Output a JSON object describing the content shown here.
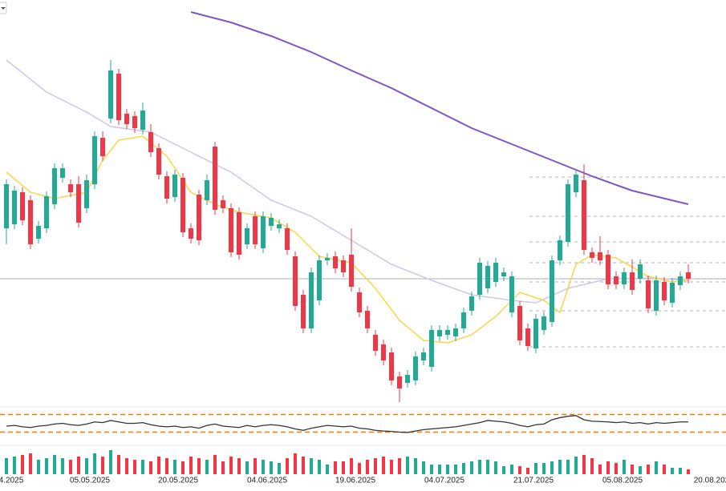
{
  "chart_data": {
    "type": "candlestick",
    "ylim": [
      0,
      510
    ],
    "colors": {
      "up": "#22ab94",
      "down": "#f23645",
      "volume_up": "#22ab94",
      "volume_down": "#f23645",
      "oscillator": "#333333",
      "bands": "#f57c00",
      "price_line": "#b0b0b0",
      "levels": "#9e9e9e"
    },
    "candles": [
      [
        225,
        286,
        205,
        280
      ],
      [
        230,
        278,
        224,
        272
      ],
      [
        270,
        276,
        229,
        235
      ],
      [
        260,
        266,
        199,
        205
      ],
      [
        212,
        234,
        206,
        228
      ],
      [
        225,
        271,
        219,
        265
      ],
      [
        255,
        306,
        249,
        300
      ],
      [
        288,
        306,
        282,
        300
      ],
      [
        280,
        286,
        264,
        270
      ],
      [
        280,
        290,
        226,
        232
      ],
      [
        250,
        292,
        244,
        285
      ],
      [
        280,
        346,
        274,
        340
      ],
      [
        338,
        346,
        309,
        315
      ],
      [
        362,
        435,
        356,
        422
      ],
      [
        418,
        424,
        354,
        360
      ],
      [
        368,
        374,
        349,
        355
      ],
      [
        365,
        371,
        344,
        350
      ],
      [
        348,
        382,
        342,
        372
      ],
      [
        345,
        355,
        314,
        320
      ],
      [
        325,
        331,
        286,
        292
      ],
      [
        290,
        296,
        256,
        262
      ],
      [
        264,
        298,
        258,
        292
      ],
      [
        288,
        294,
        214,
        220
      ],
      [
        225,
        231,
        206,
        212
      ],
      [
        267,
        273,
        204,
        210
      ],
      [
        260,
        292,
        254,
        285
      ],
      [
        327,
        333,
        242,
        248
      ],
      [
        260,
        266,
        244,
        250
      ],
      [
        250,
        256,
        189,
        195
      ],
      [
        245,
        251,
        186,
        192
      ],
      [
        205,
        231,
        199,
        225
      ],
      [
        240,
        246,
        199,
        205
      ],
      [
        200,
        246,
        194,
        240
      ],
      [
        228,
        244,
        222,
        238
      ],
      [
        225,
        236,
        219,
        230
      ],
      [
        225,
        231,
        192,
        198
      ],
      [
        190,
        196,
        122,
        128
      ],
      [
        142,
        148,
        94,
        100
      ],
      [
        100,
        176,
        94,
        170
      ],
      [
        135,
        191,
        129,
        185
      ],
      [
        185,
        194,
        179,
        188
      ],
      [
        190,
        196,
        169,
        175
      ],
      [
        185,
        191,
        164,
        170
      ],
      [
        192,
        225,
        146,
        152
      ],
      [
        145,
        151,
        114,
        120
      ],
      [
        122,
        128,
        94,
        100
      ],
      [
        92,
        98,
        66,
        72
      ],
      [
        80,
        86,
        54,
        60
      ],
      [
        70,
        76,
        29,
        35
      ],
      [
        40,
        46,
        8,
        25
      ],
      [
        32,
        48,
        26,
        42
      ],
      [
        35,
        71,
        29,
        65
      ],
      [
        60,
        76,
        54,
        70
      ],
      [
        52,
        104,
        46,
        98
      ],
      [
        90,
        104,
        84,
        98
      ],
      [
        92,
        104,
        86,
        98
      ],
      [
        90,
        106,
        84,
        100
      ],
      [
        100,
        126,
        94,
        120
      ],
      [
        122,
        146,
        116,
        140
      ],
      [
        142,
        188,
        136,
        182
      ],
      [
        150,
        184,
        144,
        178
      ],
      [
        158,
        188,
        152,
        182
      ],
      [
        165,
        176,
        159,
        170
      ],
      [
        120,
        171,
        114,
        165
      ],
      [
        128,
        134,
        79,
        85
      ],
      [
        100,
        106,
        72,
        78
      ],
      [
        75,
        118,
        69,
        112
      ],
      [
        98,
        121,
        92,
        115
      ],
      [
        108,
        191,
        102,
        185
      ],
      [
        185,
        216,
        179,
        210
      ],
      [
        208,
        286,
        202,
        280
      ],
      [
        270,
        298,
        264,
        292
      ],
      [
        285,
        305,
        192,
        198
      ],
      [
        195,
        201,
        182,
        188
      ],
      [
        195,
        215,
        179,
        185
      ],
      [
        192,
        198,
        149,
        155
      ],
      [
        165,
        171,
        149,
        155
      ],
      [
        155,
        176,
        149,
        170
      ],
      [
        170,
        186,
        142,
        148
      ],
      [
        162,
        186,
        156,
        180
      ],
      [
        160,
        166,
        119,
        125
      ],
      [
        122,
        166,
        116,
        160
      ],
      [
        158,
        164,
        129,
        135
      ],
      [
        132,
        163,
        126,
        157
      ],
      [
        154,
        171,
        148,
        165
      ],
      [
        170,
        180,
        156,
        162
      ]
    ],
    "moving_averages": [
      {
        "color": "#7e57c2",
        "x": [
          23,
          28,
          33,
          38,
          43,
          48,
          53,
          58,
          63,
          68,
          73,
          78,
          85
        ],
        "values": [
          495,
          482,
          465,
          445,
          422,
          400,
          375,
          350,
          330,
          310,
          290,
          272,
          255
        ]
      },
      {
        "color": "#d1c4e9",
        "x": [
          0,
          5,
          10,
          13,
          18,
          23,
          28,
          33,
          38,
          43,
          48,
          53,
          58,
          63,
          66,
          70,
          75,
          80,
          85
        ],
        "values": [
          435,
          395,
          370,
          352,
          345,
          320,
          295,
          260,
          240,
          210,
          180,
          160,
          142,
          135,
          132,
          150,
          162,
          163,
          160
        ]
      },
      {
        "color": "#f9d54a",
        "x": [
          0,
          3,
          6,
          10,
          12,
          14,
          17,
          20,
          23,
          26,
          29,
          33,
          36,
          39,
          43,
          46,
          49,
          52,
          55,
          58,
          61,
          64,
          67,
          69,
          71,
          73,
          76,
          80,
          83,
          85
        ],
        "values": [
          295,
          270,
          262,
          270,
          310,
          335,
          340,
          315,
          270,
          255,
          245,
          238,
          220,
          190,
          182,
          150,
          110,
          85,
          82,
          92,
          115,
          145,
          135,
          120,
          180,
          192,
          188,
          165,
          158,
          160
        ]
      }
    ],
    "price_line": 162,
    "levels": [
      289,
      240,
      208,
      182,
      158,
      122,
      77
    ],
    "volume_ylim": [
      0,
      35
    ],
    "volume": [
      20,
      22,
      24,
      26,
      18,
      20,
      24,
      20,
      18,
      22,
      20,
      26,
      22,
      30,
      24,
      20,
      18,
      18,
      16,
      22,
      20,
      18,
      16,
      22,
      20,
      18,
      24,
      16,
      22,
      20,
      16,
      20,
      18,
      16,
      14,
      20,
      26,
      22,
      20,
      18,
      12,
      16,
      16,
      20,
      14,
      18,
      20,
      22,
      18,
      20,
      22,
      20,
      16,
      12,
      12,
      12,
      12,
      14,
      16,
      18,
      18,
      16,
      10,
      12,
      10,
      8,
      14,
      14,
      16,
      18,
      18,
      22,
      24,
      20,
      12,
      16,
      14,
      18,
      12,
      10,
      12,
      16,
      12,
      8,
      8,
      6
    ],
    "oscillator_ylim": [
      -8,
      92
    ],
    "oscillator_bands": [
      75,
      25
    ],
    "oscillator": [
      42,
      44,
      40,
      38,
      42,
      44,
      48,
      50,
      46,
      44,
      48,
      54,
      52,
      58,
      54,
      50,
      50,
      52,
      46,
      42,
      40,
      42,
      38,
      40,
      36,
      44,
      48,
      42,
      40,
      38,
      44,
      40,
      44,
      46,
      44,
      40,
      34,
      30,
      36,
      40,
      44,
      42,
      40,
      42,
      36,
      34,
      30,
      28,
      27,
      25,
      24,
      28,
      32,
      34,
      36,
      38,
      40,
      44,
      48,
      52,
      58,
      56,
      54,
      50,
      44,
      40,
      46,
      48,
      60,
      66,
      70,
      72,
      60,
      56,
      55,
      54,
      52,
      54,
      50,
      52,
      48,
      52,
      50,
      52,
      54,
      54
    ],
    "xticks": [
      {
        "value": 0.6,
        "label": "4.2025"
      },
      {
        "value": 10.4,
        "label": "05.05.2025"
      },
      {
        "value": 21.4,
        "label": "20.05.2025"
      },
      {
        "value": 32.5,
        "label": "04.06.2025"
      },
      {
        "value": 43.5,
        "label": "19.06.2025"
      },
      {
        "value": 54.6,
        "label": "04.07.2025"
      },
      {
        "value": 65.7,
        "label": "21.07.2025"
      },
      {
        "value": 76.8,
        "label": "05.08.2025"
      },
      {
        "value": 87.9,
        "label": "20.08.202"
      }
    ]
  }
}
